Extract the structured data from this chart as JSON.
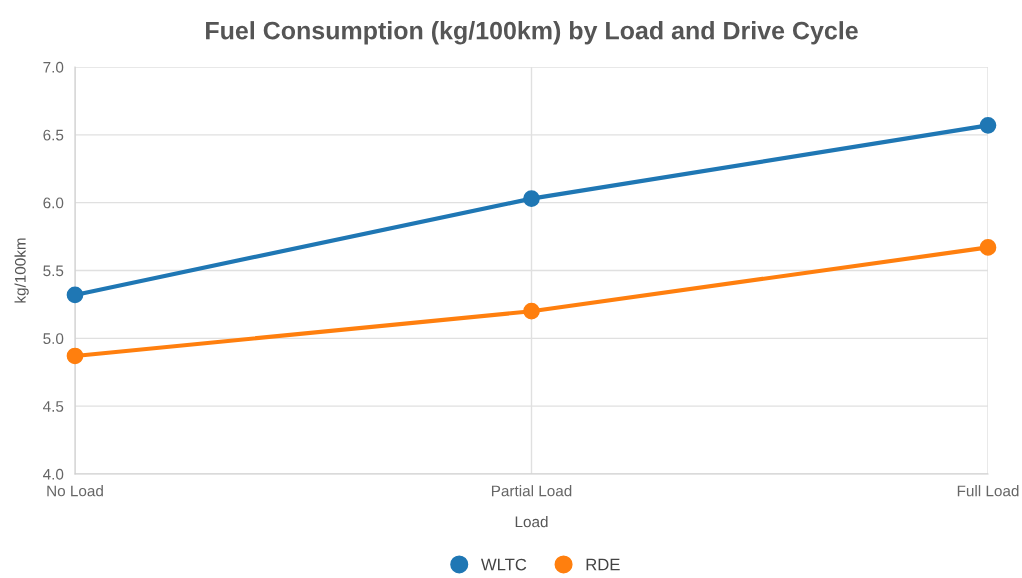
{
  "chart_data": {
    "type": "line",
    "title": "Fuel Consumption (kg/100km) by Load and Drive Cycle",
    "xlabel": "Load",
    "ylabel": "kg/100km",
    "categories": [
      "No Load",
      "Partial Load",
      "Full Load"
    ],
    "series": [
      {
        "name": "WLTC",
        "color": "#1f77b4",
        "values": [
          5.32,
          6.03,
          6.57
        ]
      },
      {
        "name": "RDE",
        "color": "#ff7f0e",
        "values": [
          4.87,
          5.2,
          5.67
        ]
      }
    ],
    "ylim": [
      4.0,
      7.0
    ],
    "yticks": [
      {
        "value": 4.0,
        "label": "4.0"
      },
      {
        "value": 4.5,
        "label": "4.5"
      },
      {
        "value": 5.0,
        "label": "5.0"
      },
      {
        "value": 5.5,
        "label": "5.5"
      },
      {
        "value": 6.0,
        "label": "6.0"
      },
      {
        "value": 6.5,
        "label": "6.5"
      },
      {
        "value": 7.0,
        "label": "7.0"
      }
    ],
    "grid": true,
    "legend": "bottom",
    "marker": "circle",
    "line_style": "solid"
  }
}
